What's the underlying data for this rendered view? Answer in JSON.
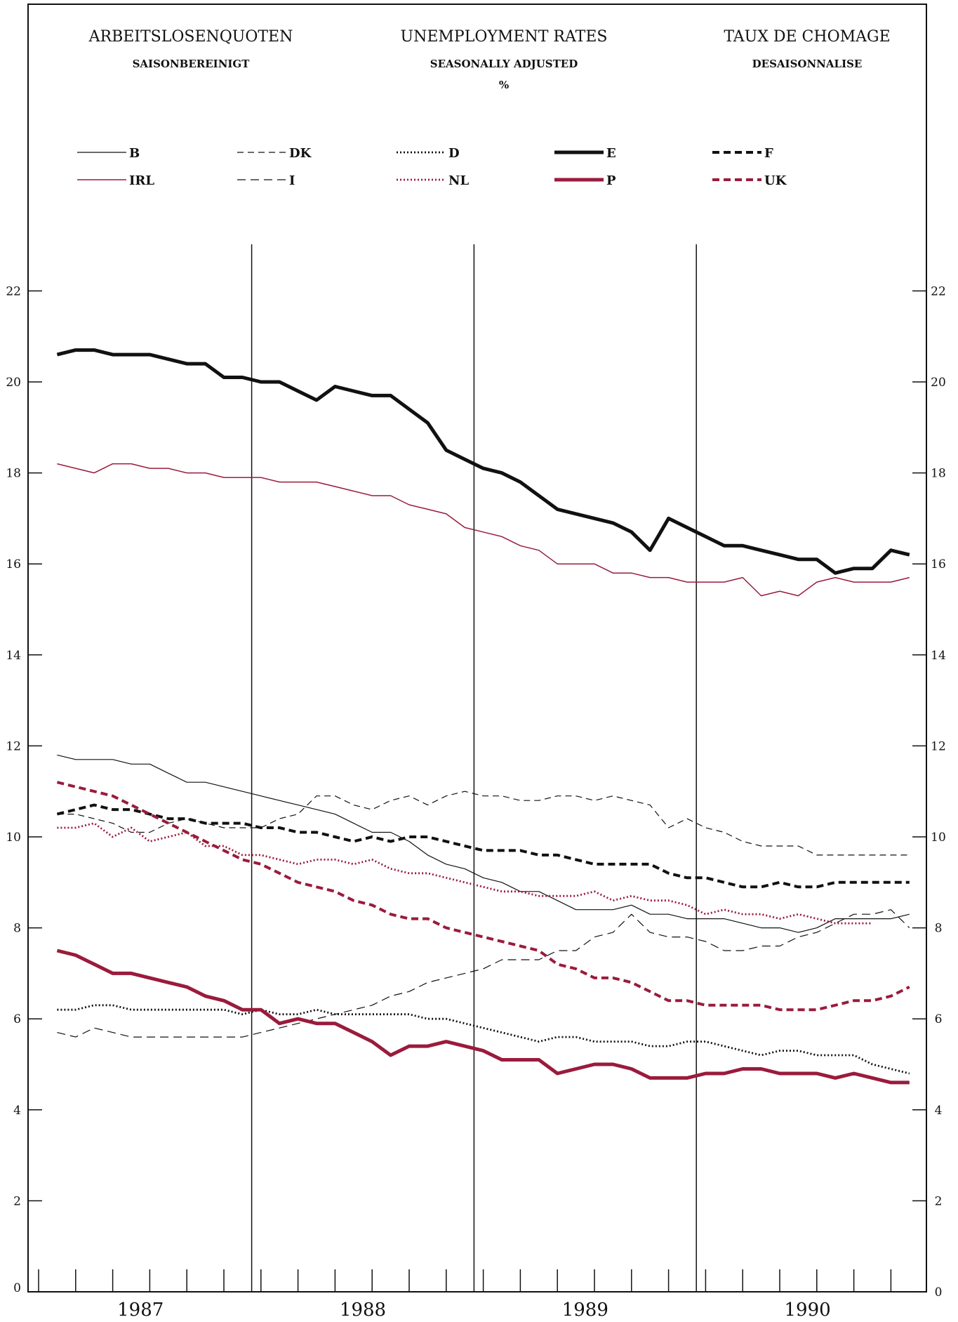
{
  "header": {
    "de_title": "ARBEITSLOSENQUOTEN",
    "de_sub": "SAISONBEREINIGT",
    "en_title": "UNEMPLOYMENT RATES",
    "en_sub": "SEASONALLY ADJUSTED",
    "unit": "%",
    "fr_title": "TAUX DE CHOMAGE",
    "fr_sub": "DESAISONNALISE"
  },
  "chart_data": {
    "type": "line",
    "title": "UNEMPLOYMENT RATES",
    "subtitle": "SEASONALLY ADJUSTED",
    "ylabel": "%",
    "ylim": [
      0,
      23
    ],
    "yticks": [
      0,
      2,
      4,
      6,
      8,
      10,
      12,
      14,
      16,
      18,
      20,
      22
    ],
    "ytick_labels": [
      "0",
      "2",
      "4",
      "6",
      "8",
      "10",
      "12",
      "14",
      "16",
      "18",
      "20",
      "22"
    ],
    "x_unit": "month",
    "x_range": [
      "1987-01",
      "1990-12"
    ],
    "years": [
      "1987",
      "1988",
      "1989",
      "1990"
    ],
    "grid": false,
    "legend": "top",
    "colors": {
      "black": "#111111",
      "red": "#9a1b3c"
    },
    "series": [
      {
        "name": "B",
        "color": "#111111",
        "dash": "",
        "width": 1.2,
        "start": "1987-02",
        "values": [
          11.8,
          11.7,
          11.7,
          11.7,
          11.6,
          11.6,
          11.4,
          11.2,
          11.2,
          11.1,
          11.0,
          10.9,
          10.8,
          10.7,
          10.6,
          10.5,
          10.3,
          10.1,
          10.1,
          9.9,
          9.6,
          9.4,
          9.3,
          9.1,
          9.0,
          8.8,
          8.8,
          8.6,
          8.4,
          8.4,
          8.4,
          8.5,
          8.3,
          8.3,
          8.2,
          8.2,
          8.2,
          8.1,
          8.0,
          8.0,
          7.9,
          8.0,
          8.2,
          8.2,
          8.2,
          8.2,
          8.3
        ]
      },
      {
        "name": "DK",
        "color": "#111111",
        "dash": "9,6",
        "width": 1.2,
        "start": "1987-02",
        "values": [
          10.5,
          10.5,
          10.4,
          10.3,
          10.1,
          10.1,
          10.3,
          10.4,
          10.3,
          10.2,
          10.2,
          10.2,
          10.4,
          10.5,
          10.9,
          10.9,
          10.7,
          10.6,
          10.8,
          10.9,
          10.7,
          10.9,
          11.0,
          10.9,
          10.9,
          10.8,
          10.8,
          10.9,
          10.9,
          10.8,
          10.9,
          10.8,
          10.7,
          10.2,
          10.4,
          10.2,
          10.1,
          9.9,
          9.8,
          9.8,
          9.8,
          9.6,
          9.6,
          9.6,
          9.6,
          9.6,
          9.6
        ]
      },
      {
        "name": "D",
        "color": "#111111",
        "dash": "2,3",
        "width": 2.8,
        "start": "1987-02",
        "values": [
          6.2,
          6.2,
          6.3,
          6.3,
          6.2,
          6.2,
          6.2,
          6.2,
          6.2,
          6.2,
          6.1,
          6.2,
          6.1,
          6.1,
          6.2,
          6.1,
          6.1,
          6.1,
          6.1,
          6.1,
          6.0,
          6.0,
          5.9,
          5.8,
          5.7,
          5.6,
          5.5,
          5.6,
          5.6,
          5.5,
          5.5,
          5.5,
          5.4,
          5.4,
          5.5,
          5.5,
          5.4,
          5.3,
          5.2,
          5.3,
          5.3,
          5.2,
          5.2,
          5.2,
          5.0,
          4.9,
          4.8
        ]
      },
      {
        "name": "E",
        "color": "#111111",
        "dash": "",
        "width": 5,
        "start": "1987-02",
        "values": [
          20.6,
          20.7,
          20.7,
          20.6,
          20.6,
          20.6,
          20.5,
          20.4,
          20.4,
          20.1,
          20.1,
          20.0,
          20.0,
          19.8,
          19.6,
          19.9,
          19.8,
          19.7,
          19.7,
          19.4,
          19.1,
          18.5,
          18.3,
          18.1,
          18.0,
          17.8,
          17.5,
          17.2,
          17.1,
          17.0,
          16.9,
          16.7,
          16.3,
          17.0,
          16.8,
          16.6,
          16.4,
          16.4,
          16.3,
          16.2,
          16.1,
          16.1,
          15.8,
          15.9,
          15.9,
          16.3,
          16.2
        ]
      },
      {
        "name": "F",
        "color": "#111111",
        "dash": "10,6",
        "width": 4,
        "start": "1987-02",
        "values": [
          10.5,
          10.6,
          10.7,
          10.6,
          10.6,
          10.5,
          10.4,
          10.4,
          10.3,
          10.3,
          10.3,
          10.2,
          10.2,
          10.1,
          10.1,
          10.0,
          9.9,
          10.0,
          9.9,
          10.0,
          10.0,
          9.9,
          9.8,
          9.7,
          9.7,
          9.7,
          9.6,
          9.6,
          9.5,
          9.4,
          9.4,
          9.4,
          9.4,
          9.2,
          9.1,
          9.1,
          9.0,
          8.9,
          8.9,
          9.0,
          8.9,
          8.9,
          9.0,
          9.0,
          9.0,
          9.0,
          9.0
        ]
      },
      {
        "name": "IRL",
        "color": "#9a1b3c",
        "dash": "",
        "width": 1.5,
        "start": "1987-02",
        "values": [
          18.2,
          18.1,
          18.0,
          18.2,
          18.2,
          18.1,
          18.1,
          18.0,
          18.0,
          17.9,
          17.9,
          17.9,
          17.8,
          17.8,
          17.8,
          17.7,
          17.6,
          17.5,
          17.5,
          17.3,
          17.2,
          17.1,
          16.8,
          16.7,
          16.6,
          16.4,
          16.3,
          16.0,
          16.0,
          16.0,
          15.8,
          15.8,
          15.7,
          15.7,
          15.6,
          15.6,
          15.6,
          15.7,
          15.3,
          15.4,
          15.3,
          15.6,
          15.7,
          15.6,
          15.6,
          15.6,
          15.7
        ]
      },
      {
        "name": "I",
        "color": "#111111",
        "dash": "12,7",
        "width": 1.2,
        "start": "1987-02",
        "values": [
          5.7,
          5.6,
          5.8,
          5.7,
          5.6,
          5.6,
          5.6,
          5.6,
          5.6,
          5.6,
          5.6,
          5.7,
          5.8,
          5.9,
          6.0,
          6.1,
          6.2,
          6.3,
          6.5,
          6.6,
          6.8,
          6.9,
          7.0,
          7.1,
          7.3,
          7.3,
          7.3,
          7.5,
          7.5,
          7.8,
          7.9,
          8.3,
          7.9,
          7.8,
          7.8,
          7.7,
          7.5,
          7.5,
          7.6,
          7.6,
          7.8,
          7.9,
          8.1,
          8.3,
          8.3,
          8.4,
          8.0
        ]
      },
      {
        "name": "NL",
        "color": "#9a1b3c",
        "dash": "2,3",
        "width": 2.8,
        "start": "1987-02",
        "values": [
          10.2,
          10.2,
          10.3,
          10.0,
          10.2,
          9.9,
          10.0,
          10.1,
          9.8,
          9.8,
          9.6,
          9.6,
          9.5,
          9.4,
          9.5,
          9.5,
          9.4,
          9.5,
          9.3,
          9.2,
          9.2,
          9.1,
          9.0,
          8.9,
          8.8,
          8.8,
          8.7,
          8.7,
          8.7,
          8.8,
          8.6,
          8.7,
          8.6,
          8.6,
          8.5,
          8.3,
          8.4,
          8.3,
          8.3,
          8.2,
          8.3,
          8.2,
          8.1,
          8.1,
          8.1
        ]
      },
      {
        "name": "P",
        "color": "#9a1b3c",
        "dash": "",
        "width": 5,
        "start": "1987-02",
        "values": [
          7.5,
          7.4,
          7.2,
          7.0,
          7.0,
          6.9,
          6.8,
          6.7,
          6.5,
          6.4,
          6.2,
          6.2,
          5.9,
          6.0,
          5.9,
          5.9,
          5.7,
          5.5,
          5.2,
          5.4,
          5.4,
          5.5,
          5.4,
          5.3,
          5.1,
          5.1,
          5.1,
          4.8,
          4.9,
          5.0,
          5.0,
          4.9,
          4.7,
          4.7,
          4.7,
          4.8,
          4.8,
          4.9,
          4.9,
          4.8,
          4.8,
          4.8,
          4.7,
          4.8,
          4.7,
          4.6,
          4.6
        ]
      },
      {
        "name": "UK",
        "color": "#9a1b3c",
        "dash": "10,6",
        "width": 4,
        "start": "1987-02",
        "values": [
          11.2,
          11.1,
          11.0,
          10.9,
          10.7,
          10.5,
          10.3,
          10.1,
          9.9,
          9.7,
          9.5,
          9.4,
          9.2,
          9.0,
          8.9,
          8.8,
          8.6,
          8.5,
          8.3,
          8.2,
          8.2,
          8.0,
          7.9,
          7.8,
          7.7,
          7.6,
          7.5,
          7.2,
          7.1,
          6.9,
          6.9,
          6.8,
          6.6,
          6.4,
          6.4,
          6.3,
          6.3,
          6.3,
          6.3,
          6.2,
          6.2,
          6.2,
          6.3,
          6.4,
          6.4,
          6.5,
          6.7
        ]
      }
    ]
  }
}
